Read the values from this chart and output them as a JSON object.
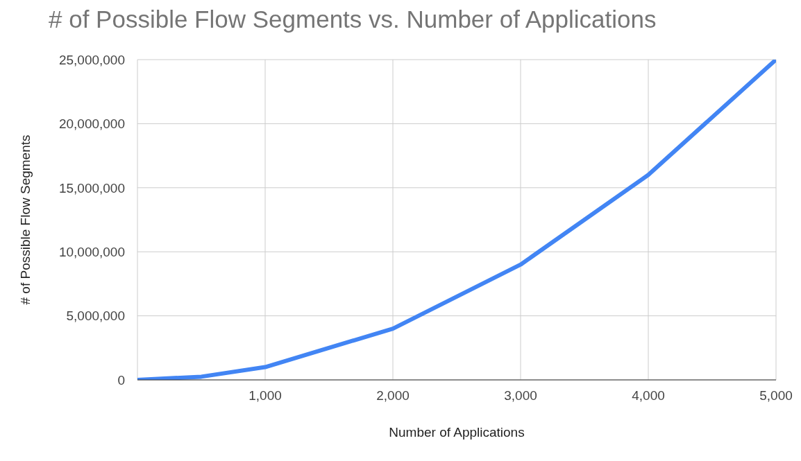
{
  "chart_data": {
    "type": "line",
    "title": "# of Possible Flow Segments vs. Number of Applications",
    "xlabel": "Number of Applications",
    "ylabel": "# of Possible Flow Segments",
    "x": [
      0,
      500,
      1000,
      2000,
      3000,
      4000,
      5000
    ],
    "series": [
      {
        "color": "#4285f4",
        "values": [
          0,
          250000,
          1000000,
          4000000,
          9000000,
          16000000,
          25000000
        ]
      }
    ],
    "xlim": [
      0,
      5000
    ],
    "xticks": [
      {
        "value": 0,
        "label": null
      },
      {
        "value": 1000,
        "label": "1,000"
      },
      {
        "value": 2000,
        "label": "2,000"
      },
      {
        "value": 3000,
        "label": "3,000"
      },
      {
        "value": 4000,
        "label": "4,000"
      },
      {
        "value": 5000,
        "label": "5,000"
      }
    ],
    "ylim": [
      0,
      25000000
    ],
    "yticks": [
      0,
      {
        "value": 5000000,
        "label": "5,000,000"
      },
      {
        "value": 10000000,
        "label": "10,000,000"
      },
      {
        "value": 15000000,
        "label": "15,000,000"
      },
      {
        "value": 20000000,
        "label": "20,000,000"
      },
      {
        "value": 25000000,
        "label": "25,000,000"
      }
    ],
    "grid": true,
    "legend": false,
    "marker": "none",
    "line_style": "solid"
  }
}
